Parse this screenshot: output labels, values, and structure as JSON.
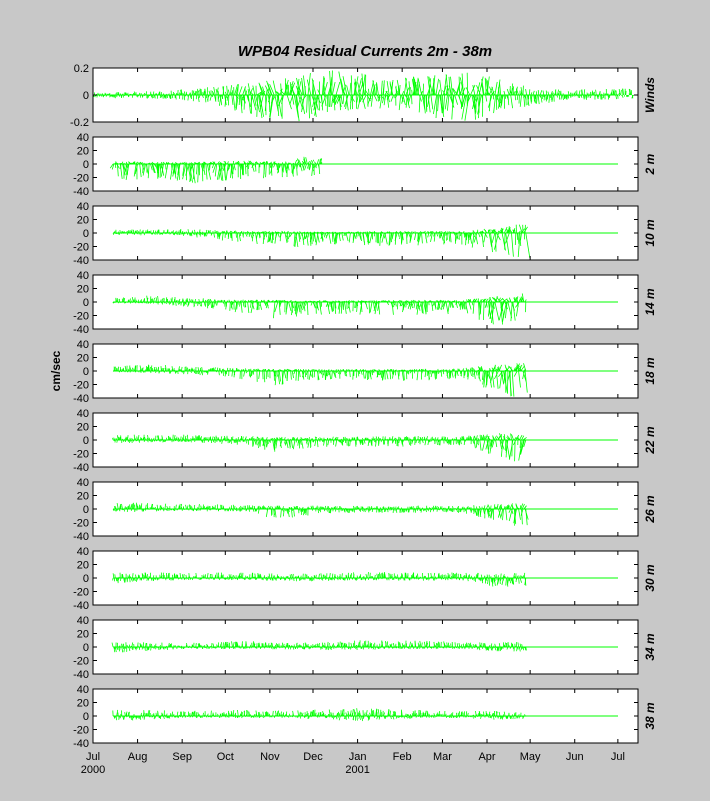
{
  "chart_data": {
    "type": "stick-vector-timeseries",
    "title": "WPB04  Residual Currents 2m - 38m",
    "ylabel": "cm/sec",
    "color": "#00ff00",
    "time_axis": {
      "start": "2000-07-01",
      "end": "2001-07-15",
      "ticks": [
        {
          "date": "2000-07-01",
          "label": "Jul",
          "sub": "2000"
        },
        {
          "date": "2000-08-01",
          "label": "Aug",
          "sub": ""
        },
        {
          "date": "2000-09-01",
          "label": "Sep",
          "sub": ""
        },
        {
          "date": "2000-10-01",
          "label": "Oct",
          "sub": ""
        },
        {
          "date": "2000-11-01",
          "label": "Nov",
          "sub": ""
        },
        {
          "date": "2000-12-01",
          "label": "Dec",
          "sub": ""
        },
        {
          "date": "2001-01-01",
          "label": "Jan",
          "sub": "2001"
        },
        {
          "date": "2001-02-01",
          "label": "Feb",
          "sub": ""
        },
        {
          "date": "2001-03-01",
          "label": "Mar",
          "sub": ""
        },
        {
          "date": "2001-04-01",
          "label": "Apr",
          "sub": ""
        },
        {
          "date": "2001-05-01",
          "label": "May",
          "sub": ""
        },
        {
          "date": "2001-06-01",
          "label": "Jun",
          "sub": ""
        },
        {
          "date": "2001-07-01",
          "label": "Jul",
          "sub": ""
        }
      ]
    },
    "panels": [
      {
        "label": "Winds",
        "ylim": [
          -0.2,
          0.2
        ],
        "yticks": [
          "0.2",
          "0",
          "-0.2"
        ],
        "data_start": "2000-07-01",
        "data_end": "2001-07-12",
        "envelope": [
          {
            "date": "2000-07-01",
            "up": 0.02,
            "down": 0.02
          },
          {
            "date": "2000-08-15",
            "up": 0.03,
            "down": 0.03
          },
          {
            "date": "2000-09-20",
            "up": 0.06,
            "down": 0.06
          },
          {
            "date": "2000-10-25",
            "up": 0.1,
            "down": 0.2
          },
          {
            "date": "2000-11-20",
            "up": 0.15,
            "down": 0.2
          },
          {
            "date": "2000-12-20",
            "up": 0.2,
            "down": 0.12
          },
          {
            "date": "2001-01-25",
            "up": 0.12,
            "down": 0.1
          },
          {
            "date": "2001-03-01",
            "up": 0.16,
            "down": 0.18
          },
          {
            "date": "2001-03-20",
            "up": 0.18,
            "down": 0.2
          },
          {
            "date": "2001-04-20",
            "up": 0.08,
            "down": 0.1
          },
          {
            "date": "2001-05-25",
            "up": 0.04,
            "down": 0.04
          },
          {
            "date": "2001-07-12",
            "up": 0.05,
            "down": 0.03
          }
        ]
      },
      {
        "label": "2 m",
        "ylim": [
          -40,
          40
        ],
        "yticks": [
          "40",
          "20",
          "0",
          "-20",
          "-40"
        ],
        "data_start": "2000-07-15",
        "data_end": "2000-12-07",
        "envelope": [
          {
            "date": "2000-07-15",
            "up": 4,
            "down": 25
          },
          {
            "date": "2000-08-15",
            "up": 3,
            "down": 22
          },
          {
            "date": "2000-09-10",
            "up": 3,
            "down": 30
          },
          {
            "date": "2000-10-15",
            "up": 5,
            "down": 22
          },
          {
            "date": "2000-11-15",
            "up": 4,
            "down": 20
          },
          {
            "date": "2000-12-01",
            "up": 15,
            "down": 18
          },
          {
            "date": "2000-12-07",
            "up": 8,
            "down": 15
          }
        ]
      },
      {
        "label": "10 m",
        "ylim": [
          -40,
          40
        ],
        "yticks": [
          "40",
          "20",
          "0",
          "-20",
          "-40"
        ],
        "data_start": "2000-07-15",
        "data_end": "2001-04-28",
        "envelope": [
          {
            "date": "2000-07-15",
            "up": 5,
            "down": 3
          },
          {
            "date": "2000-09-01",
            "up": 6,
            "down": 4
          },
          {
            "date": "2000-10-15",
            "up": 3,
            "down": 15
          },
          {
            "date": "2000-11-10",
            "up": 3,
            "down": 22
          },
          {
            "date": "2000-12-15",
            "up": 2,
            "down": 18
          },
          {
            "date": "2001-02-01",
            "up": 3,
            "down": 20
          },
          {
            "date": "2001-03-15",
            "up": 3,
            "down": 18
          },
          {
            "date": "2001-04-10",
            "up": 8,
            "down": 35
          },
          {
            "date": "2001-04-28",
            "up": 15,
            "down": 38
          }
        ]
      },
      {
        "label": "14 m",
        "ylim": [
          -40,
          40
        ],
        "yticks": [
          "40",
          "20",
          "0",
          "-20",
          "-40"
        ],
        "data_start": "2000-07-15",
        "data_end": "2001-04-28",
        "envelope": [
          {
            "date": "2000-07-15",
            "up": 6,
            "down": 2
          },
          {
            "date": "2000-08-10",
            "up": 10,
            "down": 3
          },
          {
            "date": "2000-10-01",
            "up": 4,
            "down": 12
          },
          {
            "date": "2000-11-05",
            "up": 3,
            "down": 25
          },
          {
            "date": "2000-12-15",
            "up": 2,
            "down": 18
          },
          {
            "date": "2001-02-01",
            "up": 3,
            "down": 20
          },
          {
            "date": "2001-03-15",
            "up": 3,
            "down": 18
          },
          {
            "date": "2001-04-10",
            "up": 10,
            "down": 38
          },
          {
            "date": "2001-04-28",
            "up": 14,
            "down": 38
          }
        ]
      },
      {
        "label": "18 m",
        "ylim": [
          -40,
          40
        ],
        "yticks": [
          "40",
          "20",
          "0",
          "-20",
          "-40"
        ],
        "data_start": "2000-07-15",
        "data_end": "2001-04-28",
        "envelope": [
          {
            "date": "2000-07-15",
            "up": 8,
            "down": 2
          },
          {
            "date": "2000-08-10",
            "up": 10,
            "down": 3
          },
          {
            "date": "2000-10-01",
            "up": 5,
            "down": 8
          },
          {
            "date": "2000-11-05",
            "up": 3,
            "down": 22
          },
          {
            "date": "2000-12-15",
            "up": 3,
            "down": 12
          },
          {
            "date": "2001-02-01",
            "up": 3,
            "down": 15
          },
          {
            "date": "2001-03-15",
            "up": 4,
            "down": 12
          },
          {
            "date": "2001-04-10",
            "up": 10,
            "down": 38
          },
          {
            "date": "2001-04-28",
            "up": 12,
            "down": 38
          }
        ]
      },
      {
        "label": "22 m",
        "ylim": [
          -40,
          40
        ],
        "yticks": [
          "40",
          "20",
          "0",
          "-20",
          "-40"
        ],
        "data_start": "2000-07-15",
        "data_end": "2001-04-28",
        "envelope": [
          {
            "date": "2000-07-15",
            "up": 8,
            "down": 5
          },
          {
            "date": "2000-09-01",
            "up": 8,
            "down": 3
          },
          {
            "date": "2000-10-15",
            "up": 6,
            "down": 8
          },
          {
            "date": "2000-11-05",
            "up": 5,
            "down": 18
          },
          {
            "date": "2000-12-15",
            "up": 5,
            "down": 10
          },
          {
            "date": "2001-02-01",
            "up": 6,
            "down": 10
          },
          {
            "date": "2001-03-15",
            "up": 6,
            "down": 8
          },
          {
            "date": "2001-04-10",
            "up": 10,
            "down": 30
          },
          {
            "date": "2001-04-28",
            "up": 10,
            "down": 38
          }
        ]
      },
      {
        "label": "26 m",
        "ylim": [
          -40,
          40
        ],
        "yticks": [
          "40",
          "20",
          "0",
          "-20",
          "-40"
        ],
        "data_start": "2000-07-15",
        "data_end": "2001-04-28",
        "envelope": [
          {
            "date": "2000-07-15",
            "up": 10,
            "down": 5
          },
          {
            "date": "2000-09-01",
            "up": 8,
            "down": 3
          },
          {
            "date": "2000-10-15",
            "up": 6,
            "down": 4
          },
          {
            "date": "2000-11-05",
            "up": 5,
            "down": 15
          },
          {
            "date": "2000-12-15",
            "up": 5,
            "down": 6
          },
          {
            "date": "2001-02-01",
            "up": 5,
            "down": 6
          },
          {
            "date": "2001-03-15",
            "up": 5,
            "down": 6
          },
          {
            "date": "2001-04-10",
            "up": 8,
            "down": 22
          },
          {
            "date": "2001-04-28",
            "up": 10,
            "down": 28
          }
        ]
      },
      {
        "label": "30 m",
        "ylim": [
          -40,
          40
        ],
        "yticks": [
          "40",
          "20",
          "0",
          "-20",
          "-40"
        ],
        "data_start": "2000-07-15",
        "data_end": "2001-04-28",
        "envelope": [
          {
            "date": "2000-07-15",
            "up": 8,
            "down": 8
          },
          {
            "date": "2000-09-01",
            "up": 8,
            "down": 3
          },
          {
            "date": "2000-10-15",
            "up": 8,
            "down": 3
          },
          {
            "date": "2000-11-15",
            "up": 6,
            "down": 5
          },
          {
            "date": "2001-01-01",
            "up": 9,
            "down": 4
          },
          {
            "date": "2001-02-15",
            "up": 8,
            "down": 4
          },
          {
            "date": "2001-03-15",
            "up": 8,
            "down": 4
          },
          {
            "date": "2001-04-10",
            "up": 8,
            "down": 15
          },
          {
            "date": "2001-04-28",
            "up": 8,
            "down": 12
          }
        ]
      },
      {
        "label": "34 m",
        "ylim": [
          -40,
          40
        ],
        "yticks": [
          "40",
          "20",
          "0",
          "-20",
          "-40"
        ],
        "data_start": "2000-07-15",
        "data_end": "2001-04-28",
        "envelope": [
          {
            "date": "2000-07-15",
            "up": 8,
            "down": 10
          },
          {
            "date": "2000-09-01",
            "up": 6,
            "down": 3
          },
          {
            "date": "2000-10-15",
            "up": 9,
            "down": 3
          },
          {
            "date": "2000-11-15",
            "up": 6,
            "down": 4
          },
          {
            "date": "2001-01-01",
            "up": 10,
            "down": 5
          },
          {
            "date": "2001-02-15",
            "up": 10,
            "down": 3
          },
          {
            "date": "2001-03-15",
            "up": 7,
            "down": 3
          },
          {
            "date": "2001-04-10",
            "up": 8,
            "down": 8
          },
          {
            "date": "2001-04-28",
            "up": 8,
            "down": 6
          }
        ]
      },
      {
        "label": "38 m",
        "ylim": [
          -40,
          40
        ],
        "yticks": [
          "40",
          "20",
          "0",
          "-20",
          "-40"
        ],
        "data_start": "2000-07-15",
        "data_end": "2001-04-28",
        "envelope": [
          {
            "date": "2000-07-15",
            "up": 10,
            "down": 8
          },
          {
            "date": "2000-09-01",
            "up": 8,
            "down": 3
          },
          {
            "date": "2000-10-15",
            "up": 9,
            "down": 3
          },
          {
            "date": "2000-11-15",
            "up": 8,
            "down": 3
          },
          {
            "date": "2001-01-01",
            "up": 12,
            "down": 8
          },
          {
            "date": "2001-02-15",
            "up": 9,
            "down": 3
          },
          {
            "date": "2001-03-15",
            "up": 7,
            "down": 3
          },
          {
            "date": "2001-04-10",
            "up": 8,
            "down": 6
          },
          {
            "date": "2001-04-28",
            "up": 6,
            "down": 4
          }
        ]
      }
    ]
  }
}
